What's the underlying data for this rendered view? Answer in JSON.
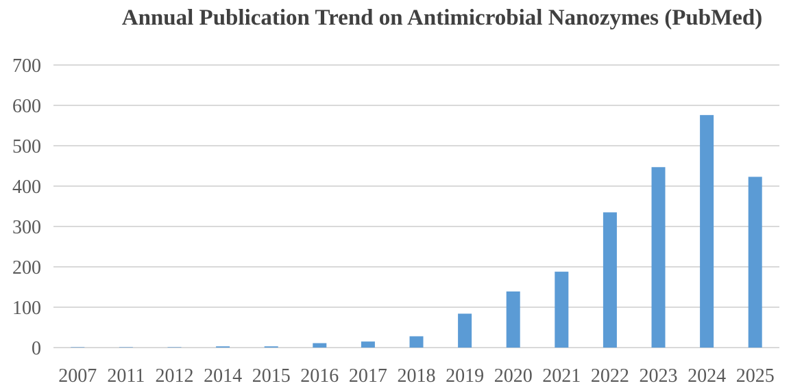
{
  "chart_data": {
    "type": "bar",
    "title": "Annual Publication Trend on Antimicrobial Nanozymes (PubMed)",
    "categories": [
      "2007",
      "2011",
      "2012",
      "2014",
      "2015",
      "2016",
      "2017",
      "2018",
      "2019",
      "2020",
      "2021",
      "2022",
      "2023",
      "2024",
      "2025"
    ],
    "values": [
      1,
      1,
      1,
      3,
      3,
      11,
      15,
      28,
      84,
      139,
      188,
      335,
      447,
      576,
      423
    ],
    "xlabel": "",
    "ylabel": "",
    "ylim": [
      0,
      700
    ],
    "yticks": [
      "0",
      "100",
      "200",
      "300",
      "400",
      "500",
      "600",
      "700"
    ],
    "grid": true,
    "legend": "none",
    "bar_color": "#5B9BD5",
    "grid_color": "#D9D9D9"
  }
}
